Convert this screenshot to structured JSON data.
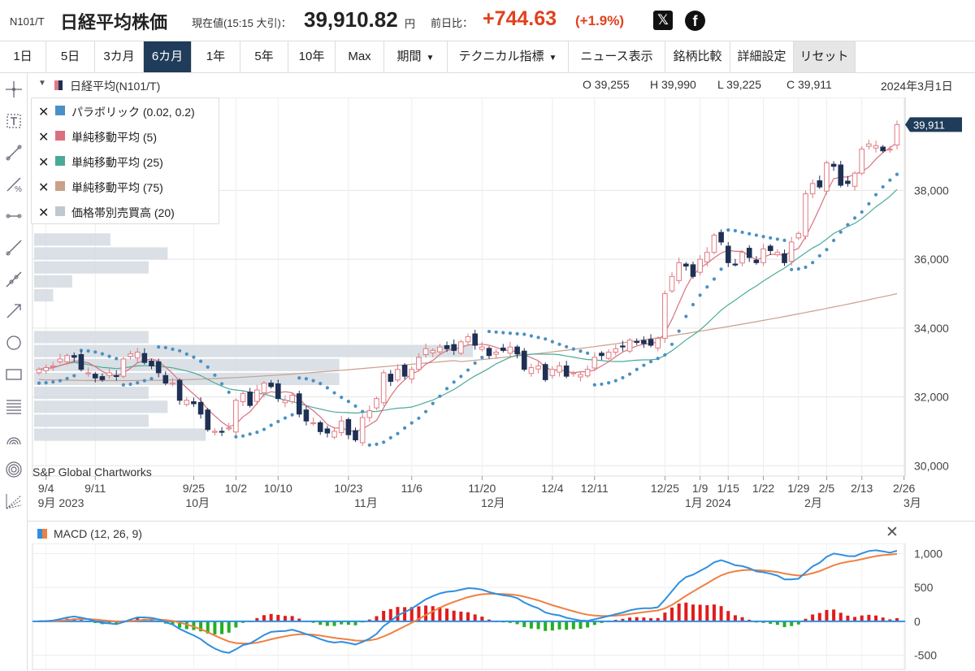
{
  "header": {
    "code": "N101/T",
    "name": "日経平均株価",
    "price_label": "現在値(15:15 大引)：",
    "price": "39,910.82",
    "price_unit": "円",
    "change_label": "前日比：",
    "change": "+744.63",
    "change_pct": "(+1.9%)",
    "share_x": "𝕏",
    "share_facebook": "f"
  },
  "toolbar": {
    "periods": [
      "1日",
      "5日",
      "3カ月",
      "6カ月",
      "1年",
      "5年",
      "10年",
      "Max"
    ],
    "active_period": "6カ月",
    "period_menu": "期間",
    "technical_menu": "テクニカル指標",
    "news": "ニュース表示",
    "compare": "銘柄比較",
    "settings": "詳細設定",
    "reset": "リセット"
  },
  "chart_info": {
    "title": "日経平均(N101/T)",
    "open": "O 39,255",
    "high": "H 39,990",
    "low": "L 39,225",
    "close": "C 39,911",
    "date": "2024年3月1日"
  },
  "legend": [
    {
      "label": "パラボリック (0.02, 0.2)",
      "color": "#4a90c4"
    },
    {
      "label": "単純移動平均 (5)",
      "color": "#d9707e"
    },
    {
      "label": "単純移動平均 (25)",
      "color": "#4aaa98"
    },
    {
      "label": "単純移動平均 (75)",
      "color": "#c9a08c"
    },
    {
      "label": "価格帯別売買高 (20)",
      "color": "#c0c8cf"
    }
  ],
  "watermark": "S&P Global Chartworks",
  "last_price_label": "39,911",
  "colors": {
    "up_candle": "#e07a82",
    "down_candle": "#1f3055",
    "parabolic": "#4a90c4",
    "sma5": "#d9707e",
    "sma25": "#4aaa98",
    "sma75": "#c9a08c",
    "volume_profile": "#d3dbe1",
    "macd_line": "#2f8fe0",
    "signal_line": "#f08040",
    "hist_pos": "#e01c1c",
    "hist_neg": "#22b022",
    "accent": "#1f3c5a",
    "change_red": "#e2401d"
  },
  "chart_data": [
    {
      "type": "candlestick",
      "y_axis_ticks": [
        "38,000",
        "36,000",
        "34,000",
        "32,000",
        "30,000"
      ],
      "ylim": [
        29700,
        40700
      ],
      "x_tick_labels": [
        "9/4",
        "9/11",
        "9/25",
        "10/2",
        "10/10",
        "10/23",
        "11/6",
        "11/20",
        "12/4",
        "12/11",
        "12/25",
        "1/9",
        "1/15",
        "1/22",
        "1/29",
        "2/5",
        "2/13",
        "2/26"
      ],
      "month_labels": [
        "9月 2023",
        "10月",
        "11月",
        "12月",
        "1月 2024",
        "2月",
        "3月"
      ],
      "close": [
        32800,
        32850,
        32900,
        33100,
        33200,
        33150,
        32800,
        32700,
        32550,
        32500,
        32700,
        32600,
        33100,
        33250,
        33300,
        33000,
        32900,
        32700,
        32400,
        32400,
        31900,
        31900,
        31800,
        31500,
        31050,
        31000,
        30990,
        31100,
        31900,
        32100,
        31750,
        32200,
        32400,
        32300,
        31950,
        31900,
        32050,
        31500,
        31300,
        31250,
        30990,
        30950,
        31000,
        31300,
        30900,
        30750,
        31400,
        31600,
        31950,
        32700,
        32450,
        32800,
        32600,
        32800,
        33150,
        33400,
        33350,
        33450,
        33400,
        33350,
        33600,
        33750,
        33500,
        33450,
        33200,
        33300,
        33350,
        33450,
        33250,
        32800,
        32850,
        32900,
        32500,
        32800,
        32900,
        32600,
        32700,
        32650,
        32800,
        33150,
        33200,
        33300,
        33400,
        33450,
        33650,
        33600,
        33550,
        33500,
        33700,
        35000,
        35500,
        35900,
        35800,
        35500,
        36000,
        36200,
        36700,
        36500,
        35900,
        35850,
        36200,
        36050,
        35900,
        36300,
        36250,
        36200,
        35900,
        36500,
        36750,
        37900,
        38200,
        38100,
        38800,
        38700,
        38150,
        38200,
        38500,
        39200,
        39350,
        39300,
        39150,
        39200,
        39911
      ],
      "parabolic_summary": "dots switch between above and below price several times",
      "sma_periods": [
        5,
        25,
        75
      ]
    },
    {
      "type": "line",
      "name": "MACD (12, 26, 9)",
      "y_axis_ticks": [
        "1,000",
        "500",
        "0",
        "-500"
      ],
      "ylim": [
        -650,
        1150
      ]
    }
  ]
}
